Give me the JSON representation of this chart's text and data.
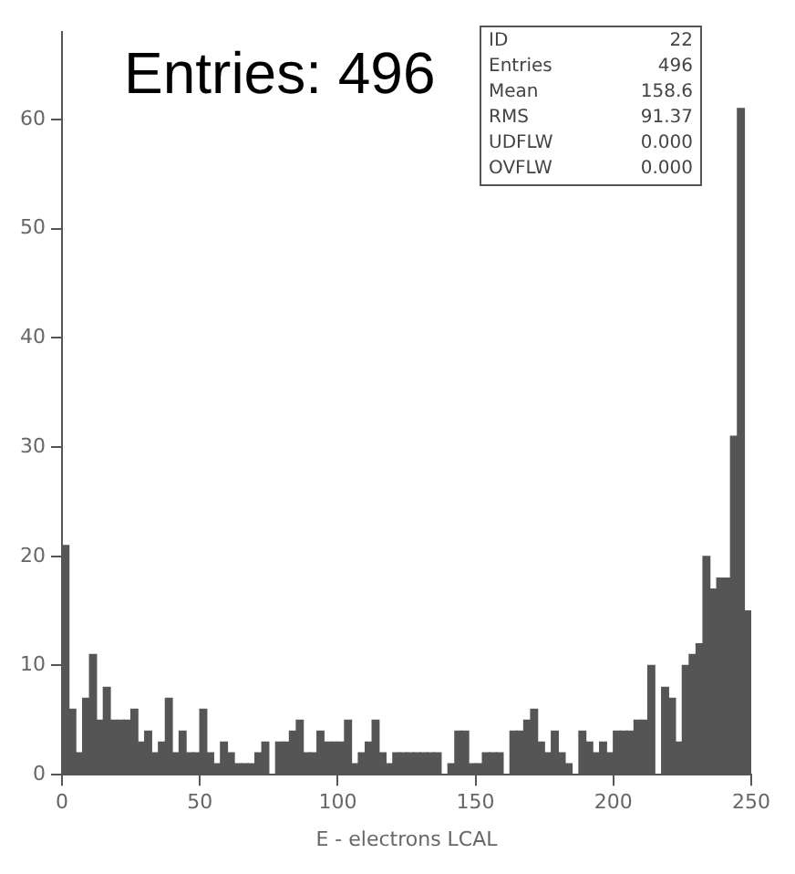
{
  "chart_data": {
    "type": "histogram",
    "xlabel": "E - electrons LCAL",
    "annotations": [
      "Entries: 496",
      "ID",
      "22",
      "Entries",
      "496",
      "Mean",
      "158.6",
      "RMS",
      "91.37",
      "UDFLW",
      "0.000",
      "OVFLW",
      "0.000"
    ],
    "bins": [
      0,
      2.5,
      5,
      7.5,
      10,
      12.5,
      15,
      17.5,
      20,
      22.5,
      25,
      27.5,
      30,
      32.5,
      35,
      37.5,
      40,
      42.5,
      45,
      47.5,
      50,
      52.5,
      55,
      57.5,
      60,
      62.5,
      65,
      67.5,
      70,
      72.5,
      75,
      77.5,
      80,
      82.5,
      85,
      87.5,
      90,
      92.5,
      95,
      97.5,
      100,
      102.5,
      105,
      107.5,
      110,
      112.5,
      115,
      117.5,
      120,
      122.5,
      125,
      127.5,
      130,
      132.5,
      135,
      137.5,
      140,
      142.5,
      145,
      147.5,
      150,
      152.5,
      155,
      157.5,
      160,
      162.5,
      165,
      167.5,
      170,
      172.5,
      175,
      177.5,
      180,
      182.5,
      185,
      187.5,
      190,
      192.5,
      195,
      197.5,
      200,
      202.5,
      205,
      207.5,
      210,
      212.5,
      215,
      217.5,
      220,
      222.5,
      225,
      227.5,
      230,
      232.5,
      235,
      237.5,
      240,
      242.5,
      245,
      247.5,
      250
    ],
    "values": [
      21,
      6,
      2,
      7,
      11,
      5,
      8,
      5,
      5,
      5,
      6,
      3,
      4,
      2,
      3,
      7,
      2,
      4,
      2,
      2,
      6,
      2,
      1,
      3,
      2,
      1,
      1,
      1,
      2,
      3,
      0,
      3,
      3,
      4,
      5,
      2,
      2,
      4,
      3,
      3,
      3,
      5,
      1,
      2,
      3,
      5,
      2,
      1,
      2,
      2,
      2,
      2,
      2,
      2,
      2,
      0,
      1,
      4,
      4,
      1,
      1,
      2,
      2,
      2,
      0,
      4,
      4,
      5,
      6,
      3,
      2,
      4,
      2,
      1,
      0,
      4,
      3,
      2,
      3,
      2,
      4,
      4,
      4,
      5,
      5,
      10,
      0,
      8,
      7,
      3,
      10,
      11,
      12,
      20,
      17,
      18,
      18,
      31,
      61,
      15
    ],
    "color": "#555555",
    "xlim": [
      0,
      250
    ],
    "xticks": [
      0,
      50,
      100,
      150,
      200,
      250
    ],
    "ylim": [
      0,
      68
    ],
    "yticks": [
      0,
      10,
      20,
      30,
      40,
      50,
      60
    ],
    "grid": false,
    "legend": false
  }
}
